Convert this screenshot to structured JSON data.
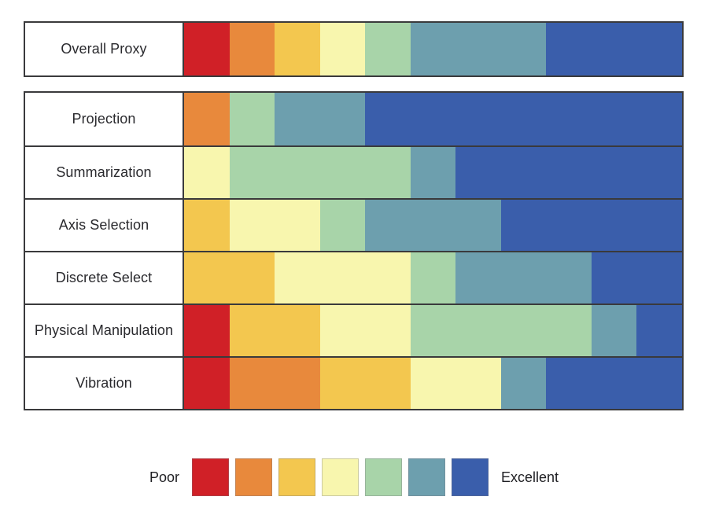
{
  "legend": {
    "low_label": "Poor",
    "high_label": "Excellent"
  },
  "chart_data": {
    "type": "bar",
    "orientation": "horizontal",
    "stacked": true,
    "scale": {
      "levels": 7,
      "low_label": "Poor",
      "high_label": "Excellent"
    },
    "colors": [
      "#d02027",
      "#e8893c",
      "#f3c74f",
      "#f8f6ae",
      "#a8d4a9",
      "#6d9fae",
      "#3a5eab"
    ],
    "total_per_row": 11,
    "overall_row": {
      "label": "Overall Proxy",
      "counts": [
        1,
        1,
        1,
        1,
        1,
        3,
        3
      ]
    },
    "rows": [
      {
        "label": "Projection",
        "counts": [
          0,
          1,
          0,
          0,
          1,
          2,
          7
        ]
      },
      {
        "label": "Summarization",
        "counts": [
          0,
          0,
          0,
          1,
          4,
          1,
          5
        ]
      },
      {
        "label": "Axis Selection",
        "counts": [
          0,
          0,
          1,
          2,
          1,
          3,
          4
        ]
      },
      {
        "label": "Discrete Select",
        "counts": [
          0,
          0,
          2,
          3,
          1,
          3,
          2
        ]
      },
      {
        "label": "Physical Manipulation",
        "counts": [
          1,
          0,
          2,
          2,
          4,
          1,
          1
        ]
      },
      {
        "label": "Vibration",
        "counts": [
          1,
          2,
          2,
          2,
          0,
          1,
          3
        ]
      }
    ]
  }
}
